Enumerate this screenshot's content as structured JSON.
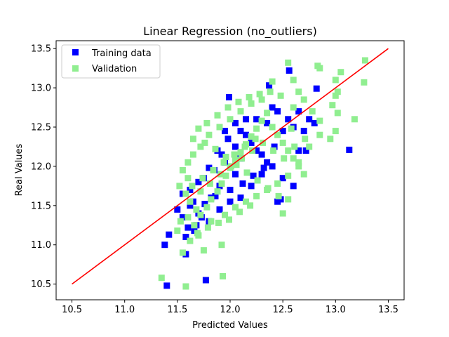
{
  "chart_data": {
    "type": "scatter",
    "title": "Linear Regression (no_outliers)",
    "xlabel": "Predicted Values",
    "ylabel": "Real Values",
    "xlim": [
      10.35,
      13.65
    ],
    "ylim": [
      10.3,
      13.6
    ],
    "xticks": [
      10.5,
      11.0,
      11.5,
      12.0,
      12.5,
      13.0,
      13.5
    ],
    "yticks": [
      10.5,
      11.0,
      11.5,
      12.0,
      12.5,
      13.0,
      13.5
    ],
    "xtick_labels": [
      "10.5",
      "11.0",
      "11.5",
      "12.0",
      "12.5",
      "13.0",
      "13.5"
    ],
    "ytick_labels": [
      "10.5",
      "11.0",
      "11.5",
      "12.0",
      "12.5",
      "13.0",
      "13.5"
    ],
    "grid": false,
    "legend_position": "upper-left",
    "colors": {
      "training": "#0000ff",
      "validation": "#90ee90",
      "fit_line": "#ff0000"
    },
    "series": [
      {
        "name": "Training data",
        "marker": "square",
        "points": [
          [
            11.4,
            10.48
          ],
          [
            11.77,
            10.55
          ],
          [
            11.58,
            10.88
          ],
          [
            11.38,
            11.0
          ],
          [
            11.42,
            11.13
          ],
          [
            11.6,
            11.22
          ],
          [
            11.55,
            11.35
          ],
          [
            11.7,
            11.4
          ],
          [
            11.65,
            11.55
          ],
          [
            11.82,
            11.6
          ],
          [
            11.9,
            11.75
          ],
          [
            11.75,
            11.85
          ],
          [
            11.85,
            11.95
          ],
          [
            11.95,
            12.05
          ],
          [
            12.0,
            11.7
          ],
          [
            12.05,
            11.9
          ],
          [
            12.1,
            12.1
          ],
          [
            11.88,
            12.2
          ],
          [
            11.98,
            12.35
          ],
          [
            12.1,
            12.45
          ],
          [
            12.2,
            12.3
          ],
          [
            12.3,
            12.15
          ],
          [
            12.4,
            12.0
          ],
          [
            12.5,
            11.85
          ],
          [
            12.6,
            11.75
          ],
          [
            12.45,
            11.55
          ],
          [
            12.48,
            11.58
          ],
          [
            12.72,
            12.2
          ],
          [
            12.65,
            12.2
          ],
          [
            13.13,
            12.21
          ],
          [
            12.82,
            12.99
          ],
          [
            12.56,
            13.22
          ],
          [
            12.37,
            13.03
          ],
          [
            11.99,
            12.88
          ],
          [
            12.45,
            12.7
          ],
          [
            12.6,
            12.5
          ],
          [
            12.75,
            12.6
          ],
          [
            12.7,
            12.45
          ],
          [
            12.35,
            12.55
          ],
          [
            12.25,
            12.6
          ],
          [
            12.15,
            12.4
          ],
          [
            12.05,
            12.25
          ],
          [
            11.92,
            12.15
          ],
          [
            11.8,
            11.98
          ],
          [
            11.7,
            11.8
          ],
          [
            11.62,
            11.7
          ],
          [
            11.55,
            11.65
          ],
          [
            11.68,
            11.25
          ],
          [
            11.73,
            11.35
          ],
          [
            11.5,
            11.45
          ],
          [
            11.8,
            11.3
          ],
          [
            11.9,
            11.45
          ],
          [
            12.0,
            11.55
          ],
          [
            12.1,
            11.6
          ],
          [
            12.2,
            11.75
          ],
          [
            12.3,
            11.9
          ],
          [
            12.35,
            12.05
          ],
          [
            12.25,
            12.2
          ],
          [
            12.15,
            12.6
          ],
          [
            12.05,
            12.55
          ],
          [
            11.95,
            12.45
          ],
          [
            12.4,
            12.75
          ],
          [
            12.5,
            12.45
          ],
          [
            12.55,
            12.6
          ],
          [
            12.65,
            12.7
          ],
          [
            12.8,
            12.55
          ],
          [
            12.42,
            12.25
          ],
          [
            12.32,
            11.98
          ],
          [
            12.22,
            11.88
          ],
          [
            12.12,
            11.78
          ],
          [
            11.62,
            11.5
          ],
          [
            11.58,
            11.1
          ],
          [
            11.66,
            11.18
          ],
          [
            11.76,
            11.52
          ],
          [
            11.86,
            11.62
          ]
        ]
      },
      {
        "name": "Validation",
        "marker": "square",
        "points": [
          [
            11.35,
            10.58
          ],
          [
            11.58,
            10.47
          ],
          [
            11.93,
            10.6
          ],
          [
            11.55,
            10.9
          ],
          [
            11.75,
            10.93
          ],
          [
            11.92,
            11.0
          ],
          [
            11.62,
            11.05
          ],
          [
            11.7,
            11.12
          ],
          [
            11.5,
            11.18
          ],
          [
            11.66,
            11.25
          ],
          [
            11.82,
            11.3
          ],
          [
            11.95,
            11.38
          ],
          [
            12.05,
            11.48
          ],
          [
            12.15,
            11.55
          ],
          [
            12.25,
            11.62
          ],
          [
            12.35,
            11.7
          ],
          [
            12.45,
            11.78
          ],
          [
            12.55,
            11.88
          ],
          [
            12.5,
            11.4
          ],
          [
            12.55,
            11.58
          ],
          [
            12.65,
            12.05
          ],
          [
            12.75,
            12.25
          ],
          [
            12.85,
            12.4
          ],
          [
            12.95,
            12.35
          ],
          [
            13.0,
            12.45
          ],
          [
            13.02,
            12.68
          ],
          [
            12.97,
            12.78
          ],
          [
            13.18,
            12.6
          ],
          [
            13.27,
            13.07
          ],
          [
            13.28,
            13.35
          ],
          [
            13.0,
            13.1
          ],
          [
            13.05,
            13.2
          ],
          [
            12.83,
            13.28
          ],
          [
            12.85,
            13.25
          ],
          [
            12.55,
            13.32
          ],
          [
            12.6,
            13.1
          ],
          [
            12.65,
            12.95
          ],
          [
            12.7,
            12.85
          ],
          [
            12.85,
            12.58
          ],
          [
            12.78,
            12.7
          ],
          [
            13.02,
            12.95
          ],
          [
            13.0,
            12.9
          ],
          [
            12.4,
            13.08
          ],
          [
            12.3,
            12.85
          ],
          [
            12.2,
            12.8
          ],
          [
            12.1,
            12.7
          ],
          [
            12.0,
            12.6
          ],
          [
            11.9,
            12.5
          ],
          [
            11.8,
            12.4
          ],
          [
            11.72,
            12.25
          ],
          [
            11.65,
            12.15
          ],
          [
            11.6,
            12.05
          ],
          [
            11.55,
            11.95
          ],
          [
            11.6,
            11.85
          ],
          [
            11.52,
            11.75
          ],
          [
            11.58,
            11.65
          ],
          [
            11.62,
            11.55
          ],
          [
            11.68,
            11.45
          ],
          [
            11.72,
            11.38
          ],
          [
            11.78,
            11.48
          ],
          [
            11.82,
            11.58
          ],
          [
            11.88,
            11.68
          ],
          [
            11.92,
            11.78
          ],
          [
            11.96,
            11.88
          ],
          [
            12.0,
            11.98
          ],
          [
            12.05,
            12.08
          ],
          [
            12.1,
            12.18
          ],
          [
            12.15,
            12.28
          ],
          [
            12.2,
            12.38
          ],
          [
            12.25,
            12.48
          ],
          [
            12.3,
            12.58
          ],
          [
            12.35,
            12.68
          ],
          [
            12.4,
            12.5
          ],
          [
            12.45,
            12.4
          ],
          [
            12.5,
            12.3
          ],
          [
            12.55,
            12.2
          ],
          [
            12.6,
            12.1
          ],
          [
            12.65,
            12.0
          ],
          [
            12.7,
            11.9
          ],
          [
            12.6,
            12.75
          ],
          [
            12.48,
            12.9
          ],
          [
            12.38,
            12.95
          ],
          [
            12.28,
            12.92
          ],
          [
            12.18,
            12.88
          ],
          [
            12.08,
            12.82
          ],
          [
            11.98,
            12.75
          ],
          [
            11.88,
            12.65
          ],
          [
            11.78,
            12.55
          ],
          [
            11.7,
            12.48
          ],
          [
            11.65,
            12.35
          ],
          [
            11.76,
            12.3
          ],
          [
            11.86,
            12.22
          ],
          [
            11.96,
            12.12
          ],
          [
            12.06,
            12.02
          ],
          [
            12.16,
            11.92
          ],
          [
            12.26,
            11.82
          ],
          [
            12.36,
            11.72
          ],
          [
            12.46,
            11.62
          ],
          [
            11.64,
            11.75
          ],
          [
            11.74,
            11.85
          ],
          [
            11.84,
            11.95
          ],
          [
            11.94,
            12.05
          ],
          [
            12.04,
            12.15
          ],
          [
            12.14,
            12.25
          ],
          [
            12.24,
            12.35
          ],
          [
            11.53,
            11.3
          ],
          [
            11.6,
            11.35
          ],
          [
            11.69,
            11.15
          ],
          [
            11.79,
            11.22
          ],
          [
            11.89,
            11.28
          ],
          [
            11.99,
            11.32
          ],
          [
            12.09,
            11.42
          ],
          [
            12.19,
            11.5
          ],
          [
            11.72,
            11.68
          ],
          [
            11.81,
            11.78
          ],
          [
            11.91,
            11.9
          ],
          [
            12.01,
            12.0
          ],
          [
            12.11,
            12.1
          ],
          [
            12.21,
            12.2
          ],
          [
            12.31,
            12.3
          ],
          [
            12.41,
            12.2
          ],
          [
            12.51,
            12.1
          ],
          [
            12.61,
            12.25
          ],
          [
            12.71,
            12.35
          ],
          [
            12.58,
            12.48
          ]
        ]
      },
      {
        "name": "",
        "type": "line",
        "points": [
          [
            10.5,
            10.5
          ],
          [
            13.5,
            13.5
          ]
        ]
      }
    ]
  }
}
